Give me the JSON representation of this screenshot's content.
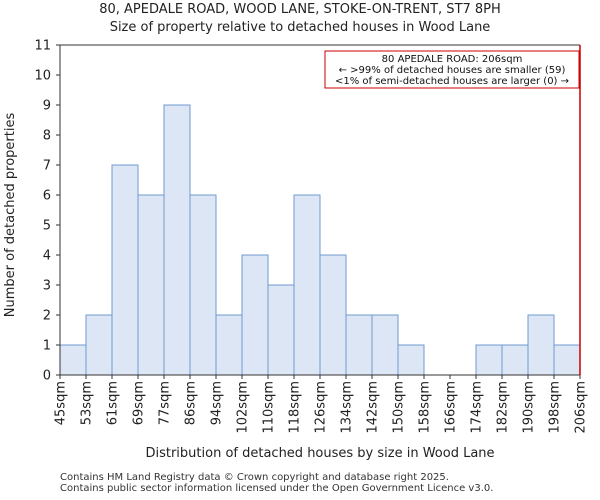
{
  "title_line1": "80, APEDALE ROAD, WOOD LANE, STOKE-ON-TRENT, ST7 8PH",
  "title_line2": "Size of property relative to detached houses in Wood Lane",
  "footer_line1": "Contains HM Land Registry data © Crown copyright and database right 2025.",
  "footer_line2": "Contains public sector information licensed under the Open Government Licence v3.0.",
  "colors": {
    "bar_fill": "#dce6f4",
    "bar_stroke": "#6f9ad1",
    "marker": "#cc0000"
  },
  "chart_data": {
    "type": "bar",
    "title": "Size of property relative to detached houses in Wood Lane",
    "xlabel": "Distribution of detached houses by size in Wood Lane",
    "ylabel": "Number of detached properties",
    "ylim": [
      0,
      11
    ],
    "yticks": [
      0,
      1,
      2,
      3,
      4,
      5,
      6,
      7,
      8,
      9,
      10,
      11
    ],
    "tick_labels": [
      "45sqm",
      "53sqm",
      "61sqm",
      "69sqm",
      "77sqm",
      "86sqm",
      "94sqm",
      "102sqm",
      "110sqm",
      "118sqm",
      "126sqm",
      "134sqm",
      "142sqm",
      "150sqm",
      "158sqm",
      "166sqm",
      "174sqm",
      "182sqm",
      "190sqm",
      "198sqm",
      "206sqm"
    ],
    "values": [
      1,
      2,
      7,
      6,
      9,
      6,
      2,
      4,
      3,
      6,
      4,
      2,
      2,
      1,
      0,
      0,
      1,
      1,
      2,
      1
    ],
    "marker_value_sqm": 206,
    "annotation": [
      "80 APEDALE ROAD: 206sqm",
      "← >99% of detached houses are smaller (59)",
      "<1% of semi-detached houses are larger (0) →"
    ]
  }
}
